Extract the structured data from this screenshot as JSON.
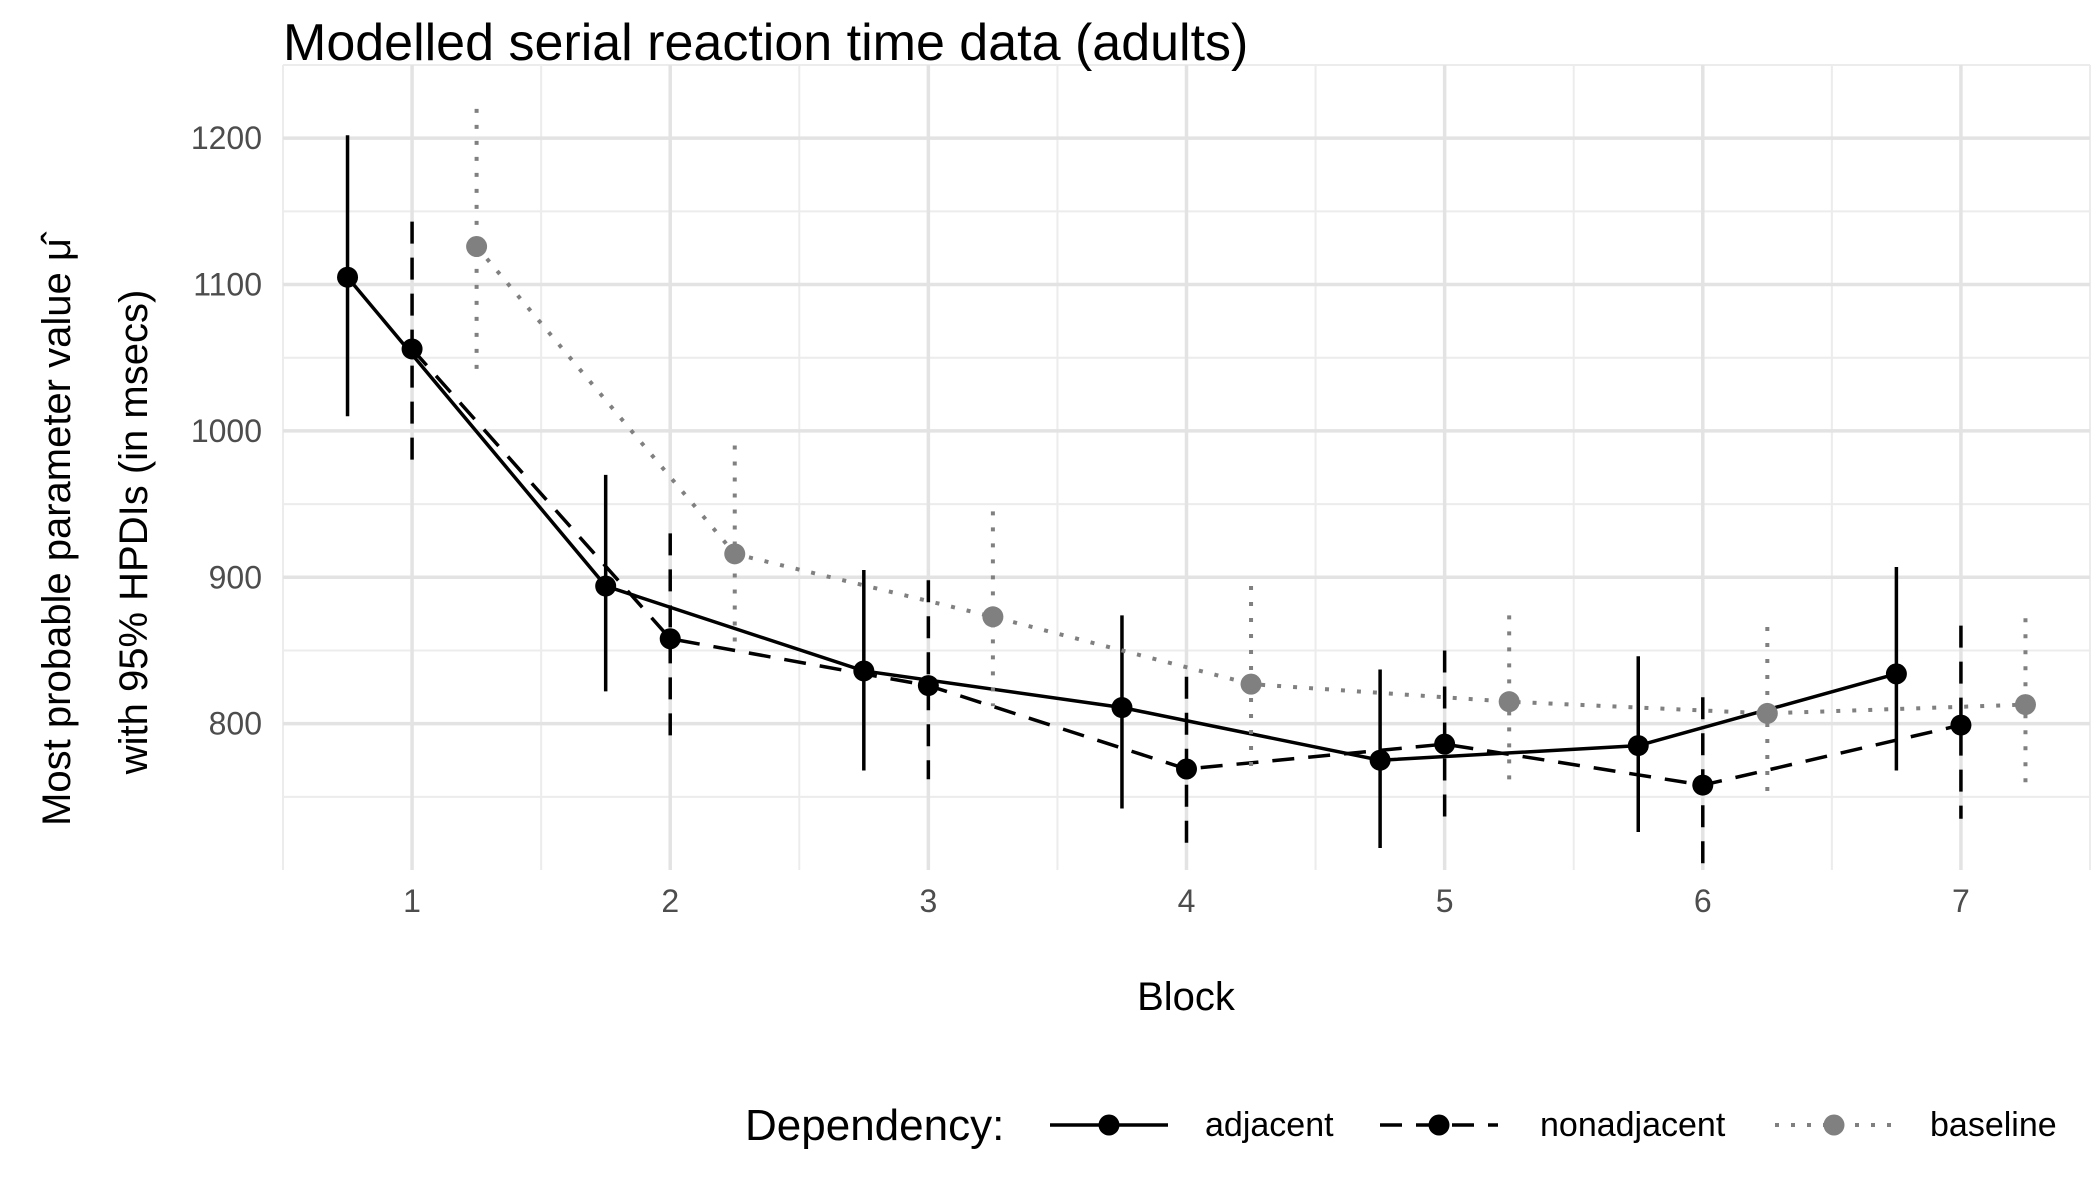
{
  "chart_data": {
    "type": "line",
    "title": "Modelled serial reaction time data (adults)",
    "xlabel": "Block",
    "ylabel_line1": "Most probable parameter value  μ̂",
    "ylabel_line2": "with 95% HPDIs (in msecs)",
    "categories": [
      "1",
      "2",
      "3",
      "4",
      "5",
      "6",
      "7"
    ],
    "x": [
      1,
      2,
      3,
      4,
      5,
      6,
      7
    ],
    "yticks": [
      "800",
      "900",
      "1000",
      "1100",
      "1200"
    ],
    "ylim": [
      700,
      1250
    ],
    "grid": true,
    "legend_position": "bottom",
    "legend_title": "Dependency:",
    "series": [
      {
        "name": "adjacent",
        "color": "#000000",
        "linestyle": "solid",
        "values": [
          1105,
          894,
          836,
          811,
          775,
          785,
          834
        ],
        "lower": [
          1010,
          822,
          768,
          742,
          715,
          726,
          768
        ],
        "upper": [
          1202,
          970,
          905,
          874,
          837,
          846,
          907
        ]
      },
      {
        "name": "nonadjacent",
        "color": "#000000",
        "linestyle": "dashed",
        "values": [
          1056,
          858,
          826,
          769,
          786,
          758,
          799
        ],
        "lower": [
          978,
          790,
          762,
          710,
          733,
          702,
          735
        ],
        "upper": [
          1143,
          930,
          898,
          832,
          850,
          818,
          867
        ]
      },
      {
        "name": "baseline",
        "color": "#808080",
        "linestyle": "dotted",
        "values": [
          1126,
          916,
          873,
          827,
          815,
          807,
          813
        ],
        "lower": [
          1040,
          848,
          812,
          770,
          757,
          748,
          754
        ],
        "upper": [
          1220,
          990,
          945,
          894,
          874,
          866,
          872
        ]
      }
    ]
  }
}
